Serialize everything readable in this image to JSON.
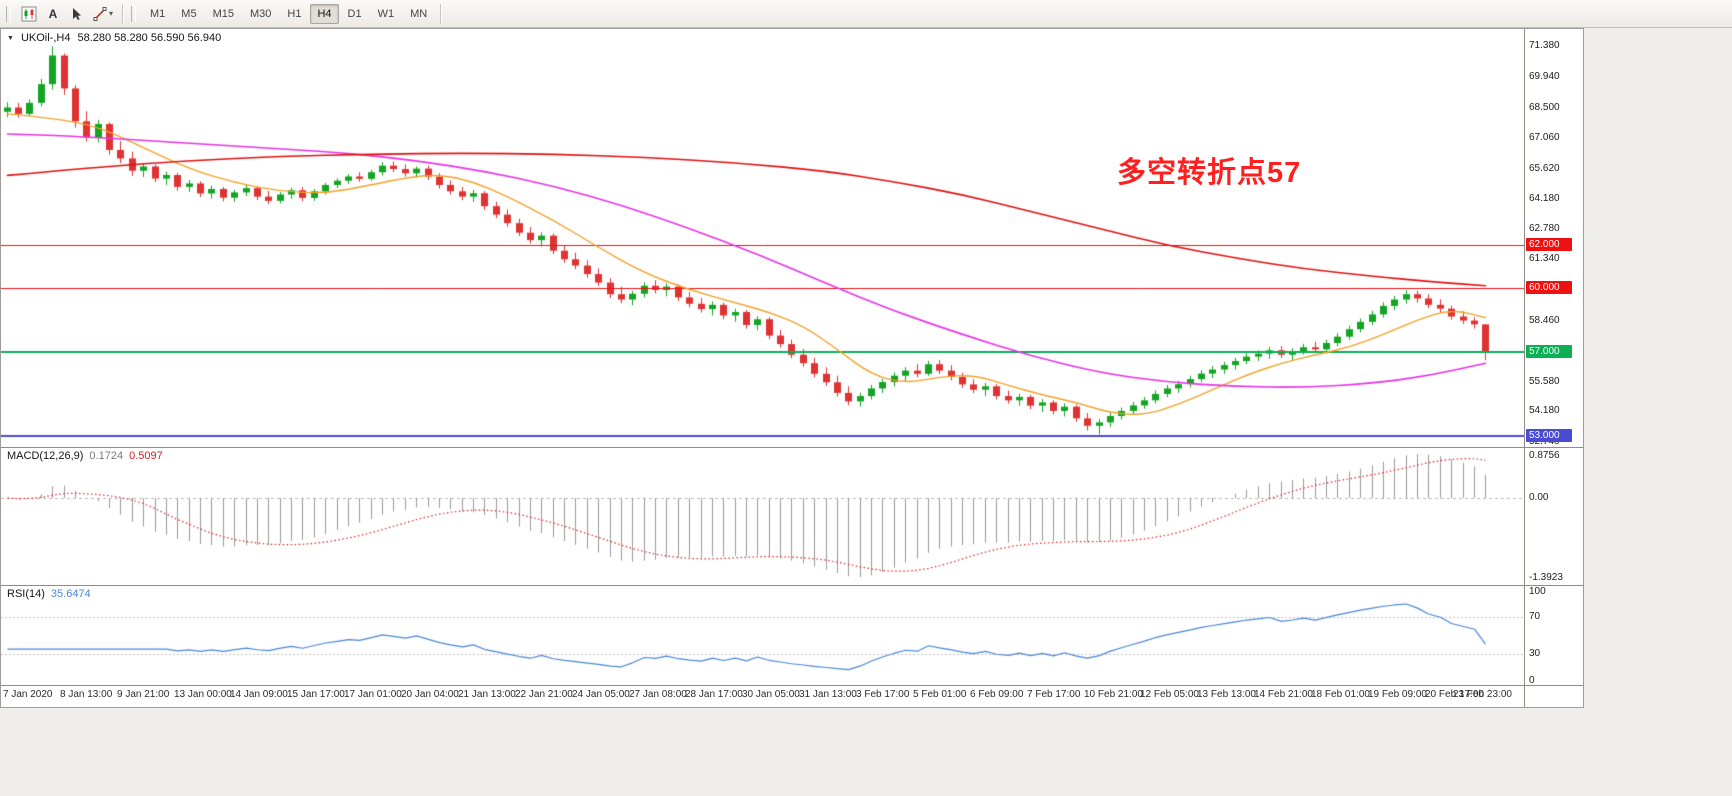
{
  "toolbar": {
    "timeframes": [
      "M1",
      "M5",
      "M15",
      "M30",
      "H1",
      "H4",
      "D1",
      "W1",
      "MN"
    ],
    "active_timeframe": "H4",
    "text_tool_label": "A",
    "caret_glyph": "▾"
  },
  "chart": {
    "symbol_label": "UKOil-,H4",
    "ohlc_values": "58.280 58.280 56.590 56.940",
    "marker_glyph": "▼",
    "annotation": {
      "text": "多空转折点57",
      "color": "#ff1f1f"
    },
    "colors": {
      "up": "#12a422",
      "down": "#e03232"
    },
    "price_axis_labels": [
      "71.380",
      "69.940",
      "68.500",
      "67.060",
      "65.620",
      "64.180",
      "62.780",
      "61.340",
      "59.900",
      "58.460",
      "57.020",
      "55.580",
      "54.180",
      "52.740"
    ],
    "levels": [
      {
        "price": 62.0,
        "label": "62.000",
        "color": "#ee1111",
        "width": 1
      },
      {
        "price": 60.0,
        "label": "60.000",
        "color": "#ee1111",
        "width": 1
      },
      {
        "price": 57.0,
        "label": "57.000",
        "color": "#0caf54",
        "width": 2
      },
      {
        "price": 53.0,
        "label": "53.000",
        "color": "#4a4ad2",
        "width": 2
      }
    ]
  },
  "chart_data": {
    "type": "candlestick",
    "symbol": "UKOil-",
    "timeframe": "H4",
    "price_range": {
      "min": 52.5,
      "max": 72.2
    },
    "bars_per_label": 5,
    "time_labels": [
      "7 Jan 2020",
      "8 Jan 13:00",
      "9 Jan 21:00",
      "13 Jan 00:00",
      "14 Jan 09:00",
      "15 Jan 17:00",
      "17 Jan 01:00",
      "20 Jan 04:00",
      "21 Jan 13:00",
      "22 Jan 21:00",
      "24 Jan 05:00",
      "27 Jan 08:00",
      "28 Jan 17:00",
      "30 Jan 05:00",
      "31 Jan 13:00",
      "3 Feb 17:00",
      "5 Feb 01:00",
      "6 Feb 09:00",
      "7 Feb 17:00",
      "10 Feb 21:00",
      "12 Feb 05:00",
      "13 Feb 13:00",
      "14 Feb 21:00",
      "18 Feb 01:00",
      "19 Feb 09:00",
      "20 Feb 17:00",
      "23 Feb 23:00"
    ],
    "candles": [
      [
        68.3,
        68.75,
        68.05,
        68.5
      ],
      [
        68.5,
        68.72,
        68.02,
        68.2
      ],
      [
        68.2,
        68.88,
        68.1,
        68.72
      ],
      [
        68.72,
        69.85,
        68.55,
        69.6
      ],
      [
        69.6,
        71.38,
        69.35,
        70.95
      ],
      [
        70.95,
        71.05,
        69.1,
        69.4
      ],
      [
        69.4,
        69.55,
        67.55,
        67.85
      ],
      [
        67.85,
        68.32,
        66.9,
        67.1
      ],
      [
        67.1,
        67.92,
        66.85,
        67.72
      ],
      [
        67.72,
        67.8,
        66.28,
        66.5
      ],
      [
        66.5,
        66.92,
        65.88,
        66.1
      ],
      [
        66.1,
        66.42,
        65.28,
        65.52
      ],
      [
        65.52,
        65.88,
        65.22,
        65.72
      ],
      [
        65.72,
        65.82,
        64.98,
        65.15
      ],
      [
        65.15,
        65.48,
        64.85,
        65.32
      ],
      [
        65.32,
        65.42,
        64.58,
        64.76
      ],
      [
        64.76,
        65.08,
        64.52,
        64.92
      ],
      [
        64.92,
        65.02,
        64.28,
        64.45
      ],
      [
        64.45,
        64.82,
        64.2,
        64.66
      ],
      [
        64.66,
        64.76,
        64.08,
        64.25
      ],
      [
        64.25,
        64.62,
        64.05,
        64.5
      ],
      [
        64.5,
        64.86,
        64.33,
        64.7
      ],
      [
        64.7,
        64.8,
        64.14,
        64.3
      ],
      [
        64.3,
        64.56,
        63.95,
        64.1
      ],
      [
        64.1,
        64.52,
        63.98,
        64.4
      ],
      [
        64.4,
        64.72,
        64.2,
        64.6
      ],
      [
        64.6,
        64.75,
        64.08,
        64.24
      ],
      [
        64.24,
        64.66,
        64.1,
        64.55
      ],
      [
        64.55,
        64.95,
        64.4,
        64.85
      ],
      [
        64.85,
        65.16,
        64.7,
        65.05
      ],
      [
        65.05,
        65.36,
        64.9,
        65.25
      ],
      [
        65.25,
        65.45,
        65.0,
        65.14
      ],
      [
        65.14,
        65.56,
        65.04,
        65.45
      ],
      [
        65.45,
        65.92,
        65.3,
        65.76
      ],
      [
        65.76,
        65.95,
        65.45,
        65.6
      ],
      [
        65.6,
        65.82,
        65.25,
        65.4
      ],
      [
        65.4,
        65.72,
        65.2,
        65.62
      ],
      [
        65.62,
        65.76,
        65.08,
        65.24
      ],
      [
        65.24,
        65.4,
        64.68,
        64.85
      ],
      [
        64.85,
        65.06,
        64.4,
        64.55
      ],
      [
        64.55,
        64.76,
        64.14,
        64.3
      ],
      [
        64.3,
        64.62,
        64.05,
        64.46
      ],
      [
        64.46,
        64.56,
        63.68,
        63.85
      ],
      [
        63.85,
        64.06,
        63.28,
        63.45
      ],
      [
        63.45,
        63.7,
        62.88,
        63.05
      ],
      [
        63.05,
        63.26,
        62.45,
        62.6
      ],
      [
        62.6,
        62.86,
        62.1,
        62.25
      ],
      [
        62.25,
        62.62,
        61.95,
        62.46
      ],
      [
        62.46,
        62.56,
        61.58,
        61.75
      ],
      [
        61.75,
        62.0,
        61.18,
        61.35
      ],
      [
        61.35,
        61.66,
        60.88,
        61.05
      ],
      [
        61.05,
        61.3,
        60.48,
        60.65
      ],
      [
        60.65,
        60.92,
        60.08,
        60.25
      ],
      [
        60.25,
        60.46,
        59.52,
        59.7
      ],
      [
        59.7,
        60.06,
        59.28,
        59.45
      ],
      [
        59.45,
        59.86,
        59.18,
        59.72
      ],
      [
        59.72,
        60.26,
        59.55,
        60.1
      ],
      [
        60.1,
        60.36,
        59.74,
        59.9
      ],
      [
        59.9,
        60.22,
        59.6,
        60.06
      ],
      [
        60.06,
        60.16,
        59.38,
        59.55
      ],
      [
        59.55,
        59.8,
        59.08,
        59.25
      ],
      [
        59.25,
        59.52,
        58.84,
        59.0
      ],
      [
        59.0,
        59.36,
        58.7,
        59.2
      ],
      [
        59.2,
        59.3,
        58.52,
        58.7
      ],
      [
        58.7,
        59.02,
        58.4,
        58.86
      ],
      [
        58.86,
        58.96,
        58.08,
        58.25
      ],
      [
        58.25,
        58.66,
        58.0,
        58.52
      ],
      [
        58.52,
        58.62,
        57.58,
        57.75
      ],
      [
        57.75,
        58.02,
        57.18,
        57.35
      ],
      [
        57.35,
        57.56,
        56.68,
        56.85
      ],
      [
        56.85,
        57.12,
        56.28,
        56.45
      ],
      [
        56.45,
        56.7,
        55.78,
        55.95
      ],
      [
        55.95,
        56.26,
        55.38,
        55.55
      ],
      [
        55.55,
        55.86,
        54.88,
        55.05
      ],
      [
        55.05,
        55.36,
        54.48,
        54.65
      ],
      [
        54.65,
        55.06,
        54.4,
        54.9
      ],
      [
        54.9,
        55.42,
        54.74,
        55.26
      ],
      [
        55.26,
        55.72,
        55.05,
        55.56
      ],
      [
        55.56,
        56.02,
        55.35,
        55.86
      ],
      [
        55.86,
        56.26,
        55.6,
        56.1
      ],
      [
        56.1,
        56.4,
        55.78,
        55.95
      ],
      [
        55.95,
        56.56,
        55.85,
        56.4
      ],
      [
        56.4,
        56.6,
        55.94,
        56.1
      ],
      [
        56.1,
        56.36,
        55.64,
        55.8
      ],
      [
        55.8,
        56.0,
        55.28,
        55.45
      ],
      [
        55.45,
        55.7,
        55.04,
        55.2
      ],
      [
        55.2,
        55.52,
        54.9,
        55.36
      ],
      [
        55.36,
        55.46,
        54.74,
        54.9
      ],
      [
        54.9,
        55.16,
        54.55,
        54.7
      ],
      [
        54.7,
        55.0,
        54.44,
        54.86
      ],
      [
        54.86,
        54.96,
        54.28,
        54.45
      ],
      [
        54.45,
        54.76,
        54.14,
        54.6
      ],
      [
        54.6,
        54.7,
        54.04,
        54.2
      ],
      [
        54.2,
        54.56,
        53.94,
        54.4
      ],
      [
        54.4,
        54.5,
        53.68,
        53.85
      ],
      [
        53.85,
        54.1,
        53.28,
        53.5
      ],
      [
        53.5,
        53.82,
        53.1,
        53.66
      ],
      [
        53.66,
        54.12,
        53.45,
        53.96
      ],
      [
        53.96,
        54.36,
        53.8,
        54.2
      ],
      [
        54.2,
        54.62,
        54.05,
        54.46
      ],
      [
        54.46,
        54.86,
        54.3,
        54.7
      ],
      [
        54.7,
        55.16,
        54.55,
        55.0
      ],
      [
        55.0,
        55.42,
        54.85,
        55.26
      ],
      [
        55.26,
        55.62,
        55.05,
        55.46
      ],
      [
        55.46,
        55.86,
        55.3,
        55.7
      ],
      [
        55.7,
        56.12,
        55.55,
        55.96
      ],
      [
        55.96,
        56.32,
        55.75,
        56.15
      ],
      [
        56.15,
        56.52,
        55.95,
        56.36
      ],
      [
        56.36,
        56.7,
        56.15,
        56.55
      ],
      [
        56.55,
        56.92,
        56.4,
        56.76
      ],
      [
        56.76,
        57.06,
        56.55,
        56.9
      ],
      [
        56.9,
        57.22,
        56.65,
        57.06
      ],
      [
        57.06,
        57.26,
        56.7,
        56.85
      ],
      [
        56.85,
        57.16,
        56.55,
        57.0
      ],
      [
        57.0,
        57.36,
        56.85,
        57.2
      ],
      [
        57.2,
        57.46,
        56.94,
        57.1
      ],
      [
        57.1,
        57.56,
        56.9,
        57.4
      ],
      [
        57.4,
        57.86,
        57.25,
        57.7
      ],
      [
        57.7,
        58.22,
        57.55,
        58.05
      ],
      [
        58.05,
        58.56,
        57.9,
        58.4
      ],
      [
        58.4,
        58.92,
        58.25,
        58.75
      ],
      [
        58.75,
        59.32,
        58.6,
        59.15
      ],
      [
        59.15,
        59.62,
        58.95,
        59.45
      ],
      [
        59.45,
        59.9,
        59.25,
        59.7
      ],
      [
        59.7,
        59.86,
        59.3,
        59.5
      ],
      [
        59.5,
        59.7,
        59.04,
        59.2
      ],
      [
        59.2,
        59.46,
        58.85,
        59.02
      ],
      [
        59.02,
        59.16,
        58.5,
        58.65
      ],
      [
        58.65,
        58.9,
        58.3,
        58.46
      ],
      [
        58.46,
        58.62,
        58.08,
        58.28
      ],
      [
        58.28,
        58.28,
        56.59,
        56.94
      ]
    ],
    "moving_averages": [
      {
        "name": "ma-fast",
        "color": "#f2a22a",
        "width": 1.4,
        "points": [
          [
            0,
            68.2
          ],
          [
            4,
            68.0
          ],
          [
            8,
            67.6
          ],
          [
            12,
            66.6
          ],
          [
            16,
            65.6
          ],
          [
            20,
            64.95
          ],
          [
            24,
            64.55
          ],
          [
            28,
            64.45
          ],
          [
            32,
            64.85
          ],
          [
            35,
            65.2
          ],
          [
            38,
            65.35
          ],
          [
            41,
            65.0
          ],
          [
            44,
            64.3
          ],
          [
            48,
            63.2
          ],
          [
            52,
            61.9
          ],
          [
            56,
            60.7
          ],
          [
            60,
            59.9
          ],
          [
            64,
            59.3
          ],
          [
            67,
            58.85
          ],
          [
            70,
            58.2
          ],
          [
            73,
            57.1
          ],
          [
            76,
            55.9
          ],
          [
            79,
            55.5
          ],
          [
            82,
            55.8
          ],
          [
            85,
            55.9
          ],
          [
            88,
            55.4
          ],
          [
            91,
            54.95
          ],
          [
            94,
            54.6
          ],
          [
            97,
            54.1
          ],
          [
            100,
            54.0
          ],
          [
            103,
            54.5
          ],
          [
            106,
            55.2
          ],
          [
            109,
            55.9
          ],
          [
            112,
            56.45
          ],
          [
            115,
            56.85
          ],
          [
            118,
            57.2
          ],
          [
            121,
            57.8
          ],
          [
            124,
            58.5
          ],
          [
            127,
            59.0
          ],
          [
            130,
            58.6
          ]
        ]
      },
      {
        "name": "ma-mid",
        "color": "#e832e8",
        "width": 1.6,
        "points": [
          [
            0,
            67.25
          ],
          [
            6,
            67.15
          ],
          [
            12,
            66.95
          ],
          [
            18,
            66.75
          ],
          [
            24,
            66.55
          ],
          [
            30,
            66.35
          ],
          [
            36,
            66.0
          ],
          [
            42,
            65.5
          ],
          [
            48,
            64.8
          ],
          [
            54,
            63.9
          ],
          [
            60,
            62.8
          ],
          [
            66,
            61.6
          ],
          [
            72,
            60.2
          ],
          [
            78,
            58.9
          ],
          [
            84,
            57.8
          ],
          [
            90,
            56.8
          ],
          [
            96,
            56.0
          ],
          [
            102,
            55.55
          ],
          [
            108,
            55.35
          ],
          [
            114,
            55.3
          ],
          [
            120,
            55.5
          ],
          [
            125,
            55.85
          ],
          [
            130,
            56.45
          ]
        ]
      },
      {
        "name": "ma-slow",
        "color": "#e01010",
        "width": 1.6,
        "points": [
          [
            0,
            65.3
          ],
          [
            8,
            65.7
          ],
          [
            16,
            66.0
          ],
          [
            24,
            66.2
          ],
          [
            32,
            66.3
          ],
          [
            40,
            66.35
          ],
          [
            48,
            66.3
          ],
          [
            56,
            66.15
          ],
          [
            64,
            65.9
          ],
          [
            72,
            65.5
          ],
          [
            78,
            65.0
          ],
          [
            84,
            64.4
          ],
          [
            90,
            63.6
          ],
          [
            96,
            62.8
          ],
          [
            102,
            62.0
          ],
          [
            108,
            61.4
          ],
          [
            114,
            60.9
          ],
          [
            120,
            60.55
          ],
          [
            125,
            60.3
          ],
          [
            130,
            60.1
          ]
        ]
      }
    ]
  },
  "macd": {
    "label": "MACD(12,26,9)",
    "value_main": "0.1724",
    "value_signal": "0.5097",
    "scale_max": "0.8756",
    "scale_zero": "0.00",
    "scale_min": "-1.3923",
    "fast": 12,
    "slow": 26,
    "signal": 9,
    "histogram_color": "#9a9a9a",
    "signal_color": "#e02020"
  },
  "rsi": {
    "label": "RSI(14)",
    "value": "35.6474",
    "period": 14,
    "levels": [
      70,
      30
    ],
    "scale_labels": [
      "100",
      "70",
      "30",
      "0"
    ],
    "line_color": "#4a86d8"
  }
}
